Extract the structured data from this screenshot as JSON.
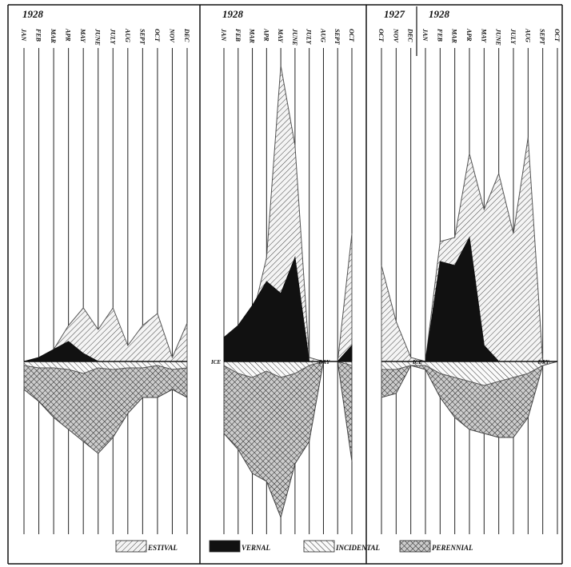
{
  "chart_data": [
    {
      "type": "area",
      "titles": [
        "1928"
      ],
      "categories": [
        "JAN",
        "FEB",
        "MAR",
        "APR",
        "MAY",
        "JUNE",
        "JULY",
        "AUG",
        "SEPT",
        "OCT",
        "NOV",
        "DEC"
      ],
      "ylim": [
        -200,
        380
      ],
      "annotations": [],
      "series": [
        {
          "name": "ESTIVAL",
          "color": "#555",
          "pattern": "hatch-left",
          "values": [
            0,
            0,
            15,
            45,
            67,
            40,
            67,
            20,
            45,
            60,
            5,
            48
          ]
        },
        {
          "name": "VERNAL",
          "color": "#111",
          "pattern": "solid",
          "values": [
            0,
            5,
            15,
            25,
            10,
            0,
            0,
            0,
            0,
            0,
            0,
            0
          ]
        },
        {
          "name": "PERENNIAL",
          "color": "#444",
          "pattern": "cross",
          "values": [
            -35,
            -50,
            -70,
            -85,
            -100,
            -115,
            -95,
            -65,
            -45,
            -45,
            -35,
            -45
          ]
        },
        {
          "name": "INCIDENTAL",
          "color": "#555",
          "pattern": "hatch-right",
          "values": [
            -5,
            -8,
            -8,
            -10,
            -15,
            -8,
            -10,
            -8,
            -8,
            -5,
            -10,
            -8
          ]
        }
      ]
    },
    {
      "type": "area",
      "titles": [
        "1928"
      ],
      "categories": [
        "JAN",
        "FEB",
        "MAR",
        "APR",
        "MAY",
        "JUNE",
        "JULY",
        "AUG",
        "SEPT",
        "OCT"
      ],
      "ylim": [
        -200,
        380
      ],
      "annotations": [
        {
          "text": "ICE",
          "at": "JAN"
        },
        {
          "text": "DRY",
          "at": "AUG"
        }
      ],
      "series": [
        {
          "name": "ESTIVAL",
          "color": "#555",
          "pattern": "hatch-left",
          "values": [
            0,
            45,
            55,
            130,
            370,
            270,
            5,
            0,
            0,
            160
          ]
        },
        {
          "name": "VERNAL",
          "color": "#111",
          "pattern": "solid",
          "values": [
            30,
            45,
            70,
            100,
            85,
            130,
            0,
            0,
            0,
            20
          ]
        },
        {
          "name": "PERENNIAL",
          "color": "#444",
          "pattern": "cross",
          "values": [
            -90,
            -110,
            -140,
            -150,
            -195,
            -128,
            -100,
            0,
            0,
            -125
          ]
        },
        {
          "name": "INCIDENTAL",
          "color": "#555",
          "pattern": "hatch-right",
          "values": [
            -5,
            -15,
            -20,
            -12,
            -20,
            -15,
            -5,
            0,
            0,
            -5
          ]
        }
      ]
    },
    {
      "type": "area",
      "titles": [
        "1927",
        "1928"
      ],
      "categories": [
        "OCT",
        "NOV",
        "DEC",
        "JAN",
        "FEB",
        "MAR",
        "APR",
        "MAY",
        "JUNE",
        "JULY",
        "AUG",
        "SEPT",
        "OCT"
      ],
      "ylim": [
        -200,
        380
      ],
      "annotations": [
        {
          "text": "ICE",
          "at": "JAN"
        },
        {
          "text": "DRY",
          "at": "SEPT"
        }
      ],
      "series": [
        {
          "name": "ESTIVAL",
          "color": "#555",
          "pattern": "hatch-left",
          "values": [
            120,
            50,
            5,
            0,
            150,
            155,
            260,
            190,
            235,
            160,
            280,
            0,
            0
          ]
        },
        {
          "name": "VERNAL",
          "color": "#111",
          "pattern": "solid",
          "values": [
            0,
            0,
            0,
            0,
            125,
            120,
            155,
            20,
            0,
            0,
            0,
            0,
            0
          ]
        },
        {
          "name": "PERENNIAL",
          "color": "#444",
          "pattern": "cross",
          "values": [
            -45,
            -40,
            -5,
            -10,
            -45,
            -70,
            -85,
            -90,
            -95,
            -95,
            -70,
            -5,
            0
          ]
        },
        {
          "name": "INCIDENTAL",
          "color": "#555",
          "pattern": "hatch-right",
          "values": [
            -10,
            -10,
            -5,
            -5,
            -15,
            -20,
            -25,
            -30,
            -25,
            -20,
            -15,
            -5,
            0
          ]
        }
      ]
    }
  ]
}
